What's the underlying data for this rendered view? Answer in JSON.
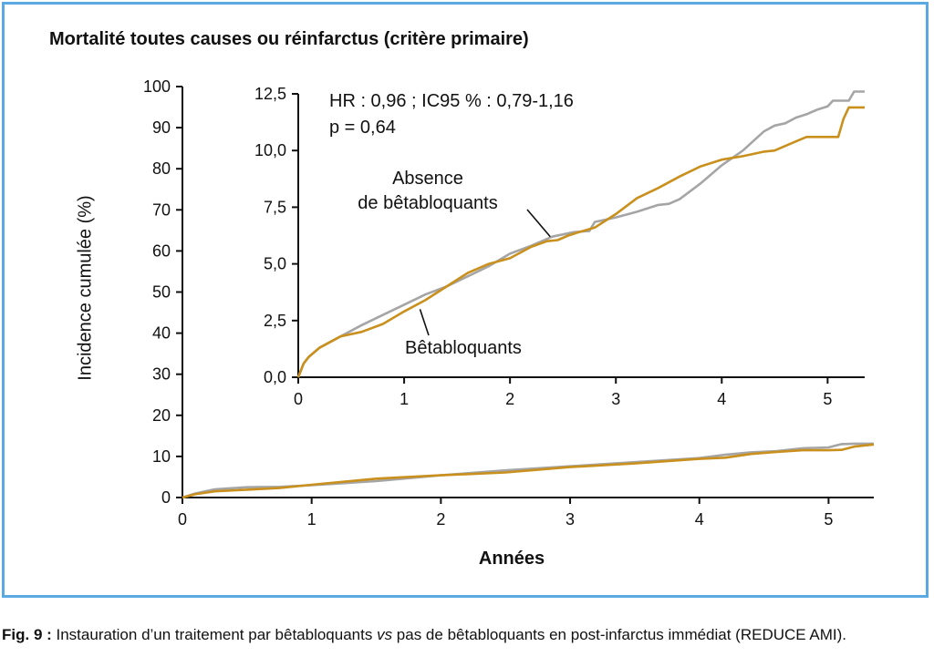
{
  "chart_data": [
    {
      "type": "line",
      "title": "Mortalité toutes causes ou réinfarctus (critère primaire)",
      "xlabel": "Années",
      "ylabel": "Incidence cumulée (%)",
      "xlim": [
        0,
        5.35
      ],
      "ylim": [
        0,
        100
      ],
      "x_ticks": [
        "0",
        "1",
        "2",
        "3",
        "4",
        "5"
      ],
      "y_ticks": [
        "0",
        "10",
        "20",
        "30",
        "40",
        "50",
        "60",
        "70",
        "80",
        "90",
        "100"
      ],
      "series": [
        {
          "color": "#a5a5a5",
          "x": [
            0,
            0.1,
            0.25,
            0.5,
            0.75,
            1.0,
            1.5,
            2.0,
            2.5,
            3.0,
            3.5,
            4.0,
            4.2,
            4.4,
            4.6,
            4.8,
            5.0,
            5.1,
            5.2,
            5.35
          ],
          "y": [
            0,
            1.0,
            2.0,
            2.5,
            2.6,
            3.0,
            4.0,
            5.4,
            6.6,
            7.6,
            8.6,
            9.6,
            10.4,
            11.0,
            11.3,
            12.0,
            12.2,
            13.0,
            13.1,
            13.1
          ]
        },
        {
          "color": "#c9901e",
          "x": [
            0,
            0.1,
            0.25,
            0.5,
            0.75,
            1.0,
            1.5,
            2.0,
            2.5,
            3.0,
            3.5,
            4.0,
            4.2,
            4.4,
            4.6,
            4.8,
            5.0,
            5.1,
            5.2,
            5.35
          ],
          "y": [
            0,
            0.8,
            1.5,
            1.9,
            2.3,
            3.1,
            4.6,
            5.4,
            6.1,
            7.4,
            8.3,
            9.4,
            9.7,
            10.6,
            11.1,
            11.5,
            11.5,
            11.6,
            12.4,
            12.9
          ]
        }
      ]
    },
    {
      "type": "line",
      "xlim": [
        0,
        5.35
      ],
      "ylim": [
        0,
        12.5
      ],
      "x_ticks": [
        "0",
        "1",
        "2",
        "3",
        "4",
        "5"
      ],
      "y_ticks": [
        "0,0",
        "2,5",
        "5,0",
        "7,5",
        "10,0",
        "12,5"
      ],
      "annotations": {
        "stats_line1": "HR : 0,96 ; IC95 % : 0,79-1,16",
        "stats_line2": "p = 0,64",
        "absence_line1": "Absence",
        "absence_line2": "de bêtabloquants",
        "beta_label": "Bêtabloquants"
      },
      "series": [
        {
          "name": "Absence de bêtabloquants",
          "color": "#a5a5a5",
          "x": [
            0,
            0.05,
            0.1,
            0.2,
            0.4,
            0.6,
            0.8,
            1.0,
            1.2,
            1.4,
            1.6,
            1.8,
            2.0,
            2.2,
            2.4,
            2.6,
            2.75,
            2.8,
            3.0,
            3.2,
            3.4,
            3.5,
            3.6,
            3.8,
            4.0,
            4.2,
            4.4,
            4.5,
            4.6,
            4.7,
            4.8,
            4.9,
            5.0,
            5.05,
            5.1,
            5.15,
            5.2,
            5.25,
            5.3,
            5.35
          ],
          "y": [
            0,
            0.6,
            0.9,
            1.3,
            1.8,
            2.3,
            2.75,
            3.2,
            3.65,
            4.0,
            4.45,
            4.9,
            5.45,
            5.8,
            6.2,
            6.4,
            6.45,
            6.85,
            7.05,
            7.3,
            7.6,
            7.65,
            7.85,
            8.55,
            9.35,
            10.0,
            10.85,
            11.1,
            11.2,
            11.45,
            11.6,
            11.8,
            11.95,
            12.2,
            12.2,
            12.2,
            12.2,
            12.6,
            12.6,
            12.6
          ]
        },
        {
          "name": "Bêtabloquants",
          "color": "#c9901e",
          "x": [
            0,
            0.05,
            0.1,
            0.2,
            0.4,
            0.6,
            0.8,
            1.0,
            1.2,
            1.4,
            1.6,
            1.8,
            2.0,
            2.2,
            2.35,
            2.45,
            2.55,
            2.65,
            2.8,
            3.0,
            3.2,
            3.4,
            3.6,
            3.8,
            4.0,
            4.2,
            4.4,
            4.5,
            4.6,
            4.7,
            4.8,
            4.9,
            5.0,
            5.05,
            5.1,
            5.15,
            5.2,
            5.25,
            5.35
          ],
          "y": [
            0,
            0.6,
            0.9,
            1.3,
            1.8,
            2.0,
            2.35,
            2.9,
            3.4,
            4.0,
            4.6,
            5.0,
            5.25,
            5.75,
            6.0,
            6.05,
            6.25,
            6.4,
            6.6,
            7.2,
            7.9,
            8.35,
            8.85,
            9.3,
            9.6,
            9.75,
            9.95,
            10.0,
            10.2,
            10.4,
            10.6,
            10.6,
            10.6,
            10.6,
            10.6,
            11.4,
            11.9,
            11.9,
            11.9
          ]
        }
      ]
    }
  ],
  "caption": {
    "label": "Fig. 9 :",
    "text_before_em": " Instauration d’un traitement par bêtabloquants ",
    "em_text": "vs",
    "text_after_em": " pas de bêtabloquants en post-infarctus immédiat (REDUCE AMI)."
  },
  "colors": {
    "frame": "#5aa9e3",
    "no_beta": "#a5a5a5",
    "beta": "#c9901e"
  }
}
